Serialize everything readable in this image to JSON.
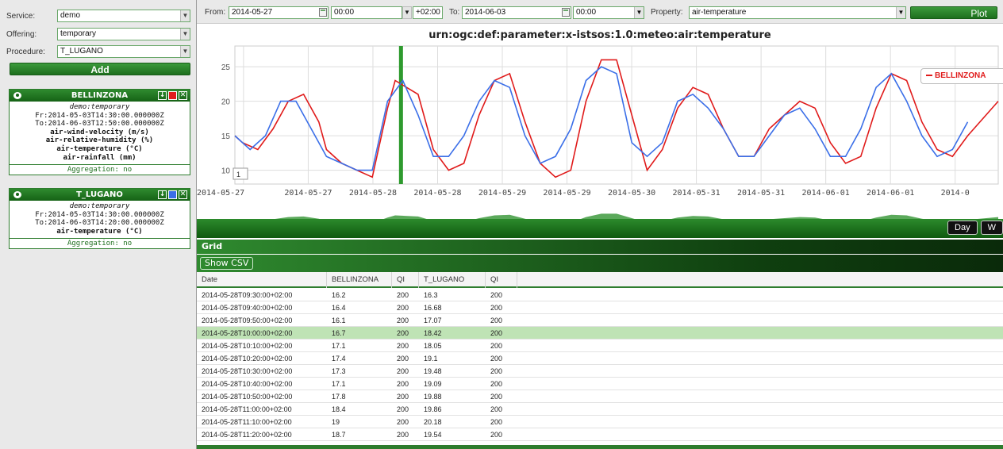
{
  "filters": {
    "service": {
      "label": "Service:",
      "value": "demo"
    },
    "offering": {
      "label": "Offering:",
      "value": "temporary"
    },
    "procedure": {
      "label": "Procedure:",
      "value": "T_LUGANO"
    },
    "add_label": "Add"
  },
  "cards": [
    {
      "title": "BELLINZONA",
      "color": "#e01b1b",
      "subtitle": "demo:temporary",
      "from": "Fr:2014-05-03T14:30:00.000000Z",
      "to": "To:2014-06-03T12:50:00.000000Z",
      "properties": [
        "air-wind-velocity (m/s)",
        "air-relative-humidity (%)",
        "air-temperature (°C)",
        "air-rainfall (mm)"
      ],
      "aggregation": "Aggregation: no"
    },
    {
      "title": "T_LUGANO",
      "color": "#3b6fe8",
      "subtitle": "demo:temporary",
      "from": "Fr:2014-05-03T14:30:00.000000Z",
      "to": "To:2014-06-03T14:20:00.000000Z",
      "properties": [
        "air-temperature (°C)"
      ],
      "aggregation": "Aggregation: no"
    }
  ],
  "toolbar": {
    "from_label": "From:",
    "from_date": "2014-05-27",
    "from_time": "00:00",
    "tz": "+02:00",
    "to_label": "To:",
    "to_date": "2014-06-03",
    "to_time": "00:00",
    "property_label": "Property:",
    "property_value": "air-temperature",
    "plot_label": "Plot"
  },
  "chart_data": {
    "type": "line",
    "title": "urn:ogc:def:parameter:x-istsos:1.0:meteo:air:temperature",
    "ylim": [
      8,
      28
    ],
    "yticks": [
      10,
      15,
      20,
      25
    ],
    "xticks": [
      "2014-05-27",
      "2014-05-27",
      "2014-05-28",
      "2014-05-28",
      "2014-05-29",
      "2014-05-29",
      "2014-05-30",
      "2014-05-31",
      "2014-05-31",
      "2014-06-01",
      "2014-06-01",
      "2014-0"
    ],
    "range_indicator": "1",
    "series": [
      {
        "name": "BELLINZONA",
        "color": "#e01b1b",
        "x": [
          0,
          0.01,
          0.03,
          0.05,
          0.07,
          0.09,
          0.11,
          0.12,
          0.14,
          0.16,
          0.18,
          0.2,
          0.21,
          0.24,
          0.26,
          0.28,
          0.3,
          0.32,
          0.34,
          0.36,
          0.38,
          0.4,
          0.42,
          0.44,
          0.46,
          0.48,
          0.5,
          0.52,
          0.54,
          0.56,
          0.58,
          0.6,
          0.62,
          0.64,
          0.66,
          0.68,
          0.7,
          0.72,
          0.74,
          0.76,
          0.78,
          0.8,
          0.82,
          0.84,
          0.86,
          0.88,
          0.9,
          0.92,
          0.94,
          0.96,
          1.0
        ],
        "y": [
          15,
          14,
          13,
          16,
          20,
          21,
          17,
          13,
          11,
          10,
          9,
          19,
          23,
          21,
          13,
          10,
          11,
          18,
          23,
          24,
          17,
          11,
          9,
          10,
          20,
          26,
          26,
          18,
          10,
          13,
          19,
          22,
          21,
          16,
          12,
          12,
          16,
          18,
          20,
          19,
          14,
          11,
          12,
          19,
          24,
          23,
          17,
          13,
          12,
          15,
          20
        ]
      },
      {
        "name": "T_LUGANO",
        "color": "#3b6fe8",
        "x": [
          0,
          0.02,
          0.04,
          0.06,
          0.08,
          0.1,
          0.12,
          0.14,
          0.16,
          0.18,
          0.2,
          0.22,
          0.24,
          0.26,
          0.28,
          0.3,
          0.32,
          0.34,
          0.36,
          0.38,
          0.4,
          0.42,
          0.44,
          0.46,
          0.48,
          0.5,
          0.52,
          0.54,
          0.56,
          0.58,
          0.6,
          0.62,
          0.64,
          0.66,
          0.68,
          0.7,
          0.72,
          0.74,
          0.76,
          0.78,
          0.8,
          0.82,
          0.84,
          0.86,
          0.88,
          0.9,
          0.92,
          0.94,
          0.96
        ],
        "y": [
          15,
          13,
          15,
          20,
          20,
          16,
          12,
          11,
          10,
          10,
          20,
          23,
          18,
          12,
          12,
          15,
          20,
          23,
          22,
          15,
          11,
          12,
          16,
          23,
          25,
          24,
          14,
          12,
          14,
          20,
          21,
          19,
          16,
          12,
          12,
          15,
          18,
          19,
          16,
          12,
          12,
          16,
          22,
          24,
          20,
          15,
          12,
          13,
          17
        ]
      }
    ]
  },
  "period_buttons": [
    "Day",
    "W"
  ],
  "grid": {
    "title": "Grid",
    "csv_label": "Show CSV",
    "columns": [
      "Date",
      "BELLINZONA",
      "QI",
      "T_LUGANO",
      "QI"
    ],
    "rows": [
      [
        "2014-05-28T09:30:00+02:00",
        "16.2",
        "200",
        "16.3",
        "200"
      ],
      [
        "2014-05-28T09:40:00+02:00",
        "16.4",
        "200",
        "16.68",
        "200"
      ],
      [
        "2014-05-28T09:50:00+02:00",
        "16.1",
        "200",
        "17.07",
        "200"
      ],
      [
        "2014-05-28T10:00:00+02:00",
        "16.7",
        "200",
        "18.42",
        "200"
      ],
      [
        "2014-05-28T10:10:00+02:00",
        "17.1",
        "200",
        "18.05",
        "200"
      ],
      [
        "2014-05-28T10:20:00+02:00",
        "17.4",
        "200",
        "19.1",
        "200"
      ],
      [
        "2014-05-28T10:30:00+02:00",
        "17.3",
        "200",
        "19.48",
        "200"
      ],
      [
        "2014-05-28T10:40:00+02:00",
        "17.1",
        "200",
        "19.09",
        "200"
      ],
      [
        "2014-05-28T10:50:00+02:00",
        "17.8",
        "200",
        "19.88",
        "200"
      ],
      [
        "2014-05-28T11:00:00+02:00",
        "18.4",
        "200",
        "19.86",
        "200"
      ],
      [
        "2014-05-28T11:10:00+02:00",
        "19",
        "200",
        "20.18",
        "200"
      ],
      [
        "2014-05-28T11:20:00+02:00",
        "18.7",
        "200",
        "19.54",
        "200"
      ]
    ],
    "selected_row": 3
  }
}
